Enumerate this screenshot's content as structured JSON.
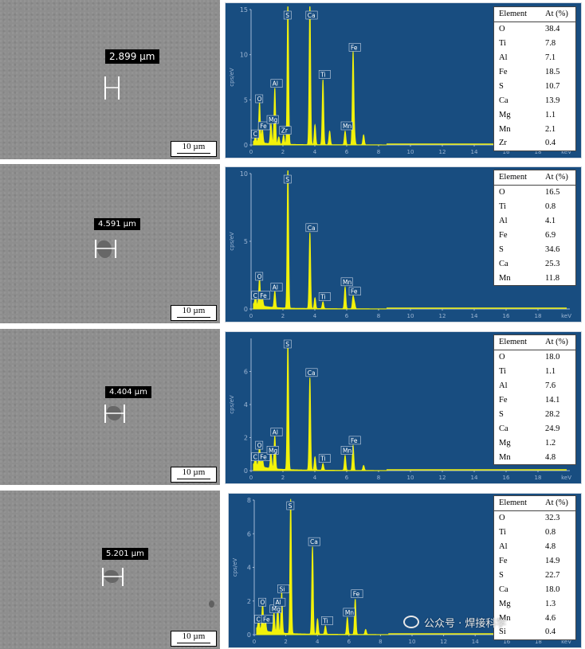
{
  "panels": [
    {
      "sem": {
        "measurement": "2.899 µm",
        "scale_bar": "10 µm",
        "particle_size_um": 2.899
      },
      "chart_data": {
        "type": "line",
        "x_unit": "keV",
        "y_unit": "cps/eV",
        "xlim": [
          0,
          20
        ],
        "ylim": [
          0,
          15
        ],
        "x_ticks": [
          0,
          2,
          4,
          6,
          8,
          10,
          12,
          14,
          16,
          18
        ],
        "y_ticks": [
          0,
          5,
          10,
          15
        ],
        "peaks": [
          {
            "label": "C",
            "x": 0.28,
            "y": 0.6
          },
          {
            "label": "O",
            "x": 0.53,
            "y": 4.5
          },
          {
            "label": "Fe",
            "x": 0.71,
            "y": 1.5
          },
          {
            "label": "Mg",
            "x": 1.25,
            "y": 2.2
          },
          {
            "label": "Al",
            "x": 1.49,
            "y": 6.2
          },
          {
            "label": "Zr",
            "x": 2.04,
            "y": 1.0
          },
          {
            "label": "S",
            "x": 2.31,
            "y": 15.8
          },
          {
            "label": "Ca",
            "x": 3.69,
            "y": 15.8
          },
          {
            "label": "Ti",
            "x": 4.51,
            "y": 7.2
          },
          {
            "label": "Mn",
            "x": 5.9,
            "y": 1.5
          },
          {
            "label": "Fe",
            "x": 6.4,
            "y": 10.2
          }
        ],
        "minor_peaks": [
          {
            "x": 1.74,
            "y": 0.8
          },
          {
            "x": 4.01,
            "y": 2.2
          },
          {
            "x": 4.93,
            "y": 1.5
          },
          {
            "x": 6.49,
            "y": 1.0
          },
          {
            "x": 7.06,
            "y": 1.1
          }
        ]
      },
      "table": {
        "headers": [
          "Element",
          "At (%)"
        ],
        "rows": [
          [
            "O",
            "38.4"
          ],
          [
            "Ti",
            "7.8"
          ],
          [
            "Al",
            "7.1"
          ],
          [
            "Fe",
            "18.5"
          ],
          [
            "S",
            "10.7"
          ],
          [
            "Ca",
            "13.9"
          ],
          [
            "Mg",
            "1.1"
          ],
          [
            "Mn",
            "2.1"
          ],
          [
            "Zr",
            "0.4"
          ]
        ]
      }
    },
    {
      "sem": {
        "measurement": "4.591 µm",
        "scale_bar": "10 µm",
        "particle_size_um": 4.591
      },
      "chart_data": {
        "type": "line",
        "x_unit": "keV",
        "y_unit": "cps/eV",
        "xlim": [
          0,
          20
        ],
        "ylim": [
          0,
          10
        ],
        "x_ticks": [
          0,
          2,
          4,
          6,
          8,
          10,
          12,
          14,
          16,
          18
        ],
        "y_ticks": [
          0,
          5,
          10
        ],
        "peaks": [
          {
            "label": "C",
            "x": 0.28,
            "y": 0.6
          },
          {
            "label": "O",
            "x": 0.53,
            "y": 2.0
          },
          {
            "label": "Fe",
            "x": 0.71,
            "y": 0.6
          },
          {
            "label": "Al",
            "x": 1.49,
            "y": 1.2
          },
          {
            "label": "S",
            "x": 2.31,
            "y": 10.4
          },
          {
            "label": "Ca",
            "x": 3.69,
            "y": 5.6
          },
          {
            "label": "Ti",
            "x": 4.51,
            "y": 0.5
          },
          {
            "label": "Mn",
            "x": 5.9,
            "y": 1.6
          },
          {
            "label": "Fe",
            "x": 6.4,
            "y": 0.9
          }
        ],
        "minor_peaks": [
          {
            "x": 4.01,
            "y": 0.8
          },
          {
            "x": 6.49,
            "y": 0.4
          }
        ]
      },
      "table": {
        "headers": [
          "Element",
          "At (%)"
        ],
        "rows": [
          [
            "O",
            "16.5"
          ],
          [
            "Ti",
            "0.8"
          ],
          [
            "Al",
            "4.1"
          ],
          [
            "Fe",
            "6.9"
          ],
          [
            "S",
            "34.6"
          ],
          [
            "Ca",
            "25.3"
          ],
          [
            "Mn",
            "11.8"
          ]
        ]
      }
    },
    {
      "sem": {
        "measurement": "4.404 µm",
        "scale_bar": "10 µm",
        "particle_size_um": 4.404
      },
      "chart_data": {
        "type": "line",
        "x_unit": "keV",
        "y_unit": "cps/eV",
        "xlim": [
          0,
          20
        ],
        "ylim": [
          0,
          8
        ],
        "x_ticks": [
          0,
          2,
          4,
          6,
          8,
          10,
          12,
          14,
          16,
          18
        ],
        "y_ticks": [
          0,
          2,
          4,
          6
        ],
        "peaks": [
          {
            "label": "C",
            "x": 0.28,
            "y": 0.5
          },
          {
            "label": "O",
            "x": 0.53,
            "y": 1.2
          },
          {
            "label": "Fe",
            "x": 0.71,
            "y": 0.5
          },
          {
            "label": "Mg",
            "x": 1.25,
            "y": 0.9
          },
          {
            "label": "Al",
            "x": 1.49,
            "y": 2.0
          },
          {
            "label": "S",
            "x": 2.31,
            "y": 7.8
          },
          {
            "label": "Ca",
            "x": 3.69,
            "y": 5.6
          },
          {
            "label": "Ti",
            "x": 4.51,
            "y": 0.4
          },
          {
            "label": "Mn",
            "x": 5.9,
            "y": 0.9
          },
          {
            "label": "Fe",
            "x": 6.4,
            "y": 1.5
          }
        ],
        "minor_peaks": [
          {
            "x": 4.01,
            "y": 0.8
          },
          {
            "x": 7.06,
            "y": 0.3
          }
        ]
      },
      "table": {
        "headers": [
          "Element",
          "At (%)"
        ],
        "rows": [
          [
            "O",
            "18.0"
          ],
          [
            "Ti",
            "1.1"
          ],
          [
            "Al",
            "7.6"
          ],
          [
            "Fe",
            "14.1"
          ],
          [
            "S",
            "28.2"
          ],
          [
            "Ca",
            "24.9"
          ],
          [
            "Mg",
            "1.2"
          ],
          [
            "Mn",
            "4.8"
          ]
        ]
      }
    },
    {
      "sem": {
        "measurement": "5.201 µm",
        "scale_bar": "10 µm",
        "particle_size_um": 5.201
      },
      "chart_data": {
        "type": "line",
        "x_unit": "keV",
        "y_unit": "cps/eV",
        "xlim": [
          0,
          20
        ],
        "ylim": [
          0,
          8
        ],
        "x_ticks": [
          0,
          2,
          4,
          6,
          8,
          10,
          12,
          14,
          16,
          18
        ],
        "y_ticks": [
          0,
          2,
          4,
          6,
          8
        ],
        "peaks": [
          {
            "label": "C",
            "x": 0.28,
            "y": 0.6
          },
          {
            "label": "O",
            "x": 0.53,
            "y": 1.6
          },
          {
            "label": "Fe",
            "x": 0.71,
            "y": 0.6
          },
          {
            "label": "Mg",
            "x": 1.25,
            "y": 1.2
          },
          {
            "label": "Al",
            "x": 1.49,
            "y": 1.6
          },
          {
            "label": "Si",
            "x": 1.74,
            "y": 2.4
          },
          {
            "label": "S",
            "x": 2.31,
            "y": 8.0
          },
          {
            "label": "Ca",
            "x": 3.69,
            "y": 5.2
          },
          {
            "label": "Ti",
            "x": 4.51,
            "y": 0.5
          },
          {
            "label": "Mn",
            "x": 5.9,
            "y": 1.0
          },
          {
            "label": "Fe",
            "x": 6.4,
            "y": 2.1
          }
        ],
        "minor_peaks": [
          {
            "x": 4.01,
            "y": 0.9
          },
          {
            "x": 7.06,
            "y": 0.3
          }
        ]
      },
      "table": {
        "headers": [
          "Element",
          "At (%)"
        ],
        "rows": [
          [
            "O",
            "32.3"
          ],
          [
            "Ti",
            "0.8"
          ],
          [
            "Al",
            "4.8"
          ],
          [
            "Fe",
            "14.9"
          ],
          [
            "S",
            "22.7"
          ],
          [
            "Ca",
            "18.0"
          ],
          [
            "Mg",
            "1.3"
          ],
          [
            "Mn",
            "4.6"
          ],
          [
            "Si",
            "0.4"
          ]
        ]
      }
    }
  ],
  "watermark": {
    "text": "公众号 · 焊接科学",
    "icon": "wechat-icon"
  }
}
